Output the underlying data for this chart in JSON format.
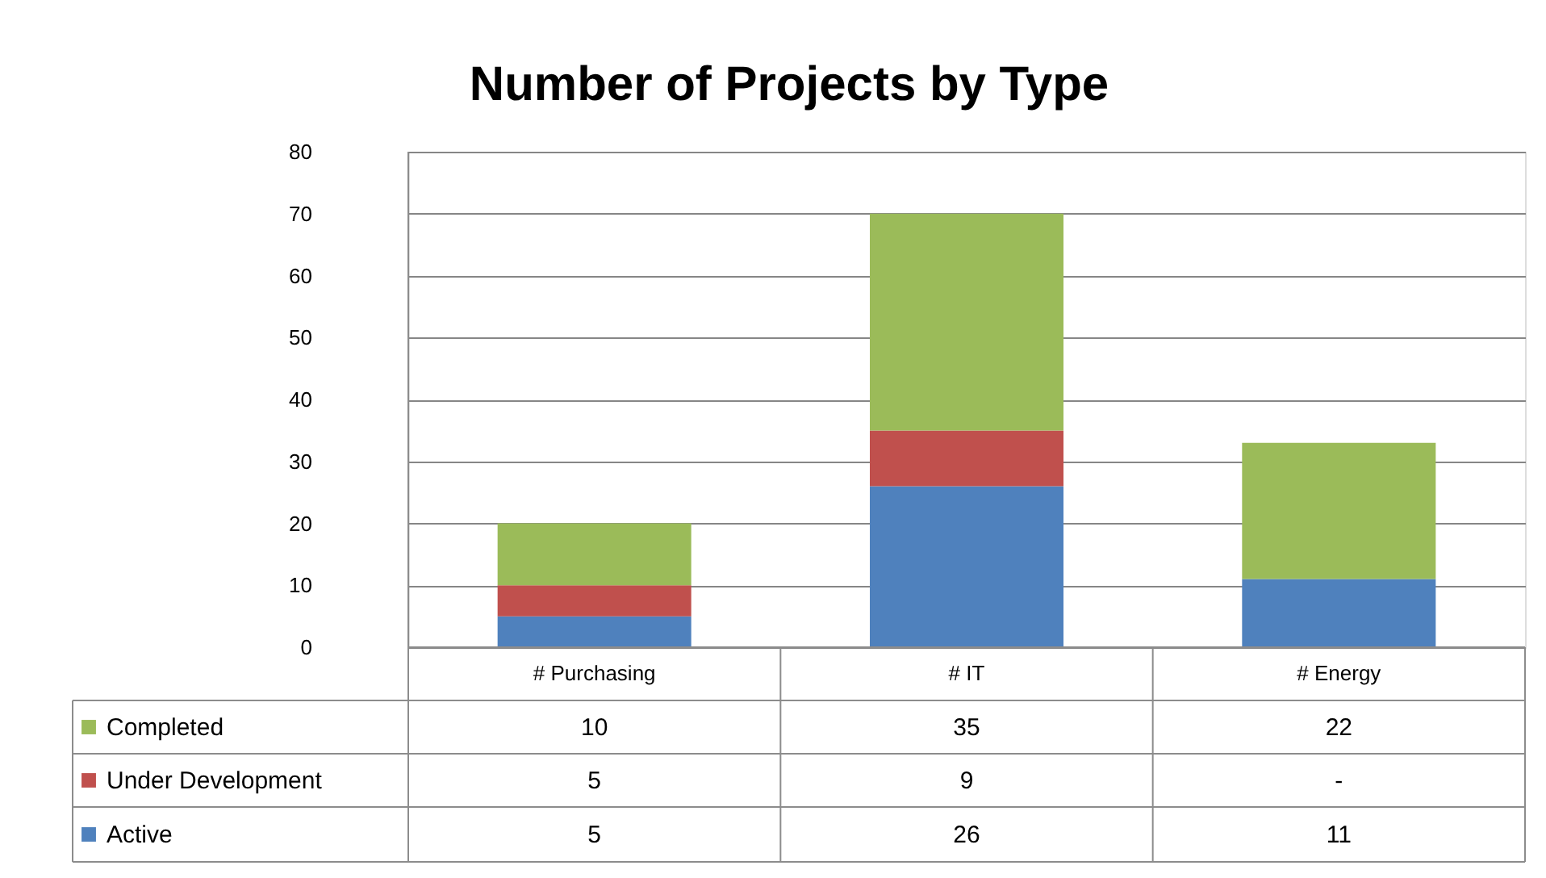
{
  "chart_data": {
    "type": "bar",
    "title": "Number of Projects by Type",
    "categories": [
      "# Purchasing",
      "# IT",
      "# Energy"
    ],
    "stacked": true,
    "series": [
      {
        "name": "Active",
        "color": "#4f81bd",
        "values": [
          5,
          26,
          11
        ],
        "value_labels": [
          "5",
          "26",
          "11"
        ]
      },
      {
        "name": "Under Development",
        "color": "#c0504d",
        "values": [
          5,
          9,
          null
        ],
        "value_labels": [
          "5",
          "9",
          "-"
        ]
      },
      {
        "name": "Completed",
        "color": "#9bbb59",
        "values": [
          10,
          35,
          22
        ],
        "value_labels": [
          "10",
          "35",
          "22"
        ]
      }
    ],
    "ylim": [
      0,
      80
    ],
    "yticks": [
      0,
      10,
      20,
      30,
      40,
      50,
      60,
      70,
      80
    ],
    "grid": "y",
    "legend": "bottom"
  }
}
